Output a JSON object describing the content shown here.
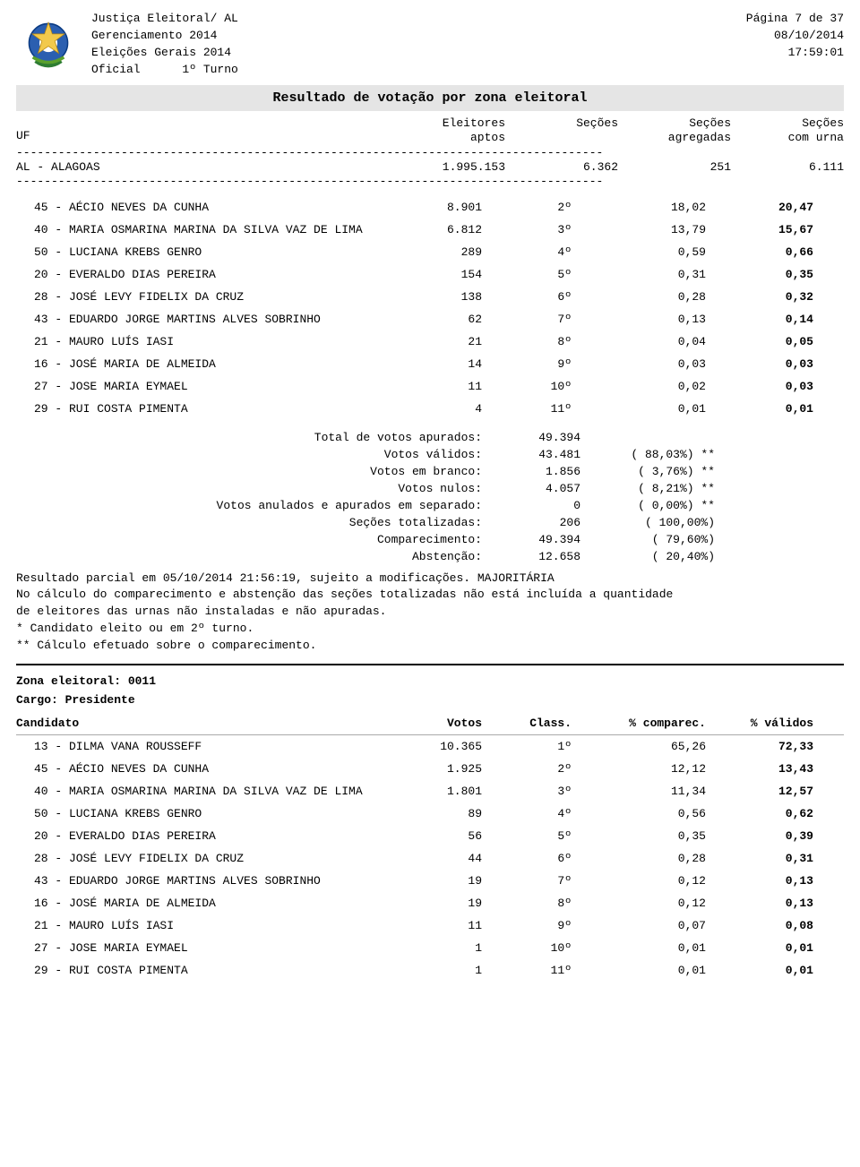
{
  "header": {
    "org": "Justiça Eleitoral/ AL",
    "mgmt": "Gerenciamento 2014",
    "election": "Eleições Gerais 2014",
    "official": "Oficial",
    "turn": "1º Turno",
    "page": "Página 7 de 37",
    "date": "08/10/2014",
    "time": "17:59:01"
  },
  "title": "Resultado de votação por zona eleitoral",
  "columns": {
    "uf": "UF",
    "c1a": "Eleitores",
    "c1b": "aptos",
    "c2a": "Seções",
    "c2b": "",
    "c3a": "Seções",
    "c3b": "agregadas",
    "c4a": "Seções",
    "c4b": "com urna"
  },
  "state": {
    "name": "AL - ALAGOAS",
    "eleitores": "1.995.153",
    "secoes": "6.362",
    "agregadas": "251",
    "com_urna": "6.111"
  },
  "dashes": "------------------------------------------------------------------------------------",
  "candidates1": [
    {
      "name": "45 - AÉCIO NEVES DA CUNHA",
      "votes": "8.901",
      "class": "2º",
      "pct1": "18,02",
      "pct2": "20,47"
    },
    {
      "name": "40 - MARIA OSMARINA MARINA DA SILVA VAZ DE LIMA",
      "votes": "6.812",
      "class": "3º",
      "pct1": "13,79",
      "pct2": "15,67"
    },
    {
      "name": "50 - LUCIANA KREBS GENRO",
      "votes": "289",
      "class": "4º",
      "pct1": "0,59",
      "pct2": "0,66"
    },
    {
      "name": "20 - EVERALDO DIAS PEREIRA",
      "votes": "154",
      "class": "5º",
      "pct1": "0,31",
      "pct2": "0,35"
    },
    {
      "name": "28 - JOSÉ LEVY FIDELIX DA CRUZ",
      "votes": "138",
      "class": "6º",
      "pct1": "0,28",
      "pct2": "0,32"
    },
    {
      "name": "43 - EDUARDO JORGE MARTINS ALVES SOBRINHO",
      "votes": "62",
      "class": "7º",
      "pct1": "0,13",
      "pct2": "0,14"
    },
    {
      "name": "21 - MAURO LUÍS IASI",
      "votes": "21",
      "class": "8º",
      "pct1": "0,04",
      "pct2": "0,05"
    },
    {
      "name": "16 - JOSÉ MARIA DE ALMEIDA",
      "votes": "14",
      "class": "9º",
      "pct1": "0,03",
      "pct2": "0,03"
    },
    {
      "name": "27 - JOSE MARIA EYMAEL",
      "votes": "11",
      "class": "10º",
      "pct1": "0,02",
      "pct2": "0,03"
    },
    {
      "name": "29 - RUI COSTA PIMENTA",
      "votes": "4",
      "class": "11º",
      "pct1": "0,01",
      "pct2": "0,01"
    }
  ],
  "summary": [
    {
      "label": "Total de votos apurados:",
      "val": "49.394",
      "pct": ""
    },
    {
      "label": "Votos válidos:",
      "val": "43.481",
      "pct": "(  88,03%) **"
    },
    {
      "label": "Votos em branco:",
      "val": "1.856",
      "pct": "(   3,76%) **"
    },
    {
      "label": "Votos nulos:",
      "val": "4.057",
      "pct": "(   8,21%) **"
    },
    {
      "label": "Votos anulados e apurados em separado:",
      "val": "0",
      "pct": "(   0,00%) **"
    },
    {
      "label": "Seções totalizadas:",
      "val": "206",
      "pct": "( 100,00%)"
    },
    {
      "label": "Comparecimento:",
      "val": "49.394",
      "pct": "(  79,60%)"
    },
    {
      "label": "Abstenção:",
      "val": "12.658",
      "pct": "(  20,40%)"
    }
  ],
  "notes": {
    "l1": "Resultado parcial em 05/10/2014 21:56:19, sujeito a modificações. MAJORITÁRIA",
    "l2": "No cálculo do comparecimento e abstenção das seções totalizadas não está incluída a quantidade",
    "l3": "de eleitores das urnas não instaladas e não apuradas.",
    "l4": "* Candidato eleito ou em 2º turno.",
    "l5": "** Cálculo efetuado sobre o comparecimento."
  },
  "zone2": {
    "title": "Zona eleitoral: 0011",
    "cargo": "Cargo: Presidente",
    "head": {
      "name": "Candidato",
      "votes": "Votos",
      "class": "Class.",
      "pct1": "% comparec.",
      "pct2": "% válidos"
    },
    "rows": [
      {
        "name": "13 - DILMA VANA ROUSSEFF",
        "votes": "10.365",
        "class": "1º",
        "pct1": "65,26",
        "pct2": "72,33"
      },
      {
        "name": "45 - AÉCIO NEVES DA CUNHA",
        "votes": "1.925",
        "class": "2º",
        "pct1": "12,12",
        "pct2": "13,43"
      },
      {
        "name": "40 - MARIA OSMARINA MARINA DA SILVA VAZ DE LIMA",
        "votes": "1.801",
        "class": "3º",
        "pct1": "11,34",
        "pct2": "12,57"
      },
      {
        "name": "50 - LUCIANA KREBS GENRO",
        "votes": "89",
        "class": "4º",
        "pct1": "0,56",
        "pct2": "0,62"
      },
      {
        "name": "20 - EVERALDO DIAS PEREIRA",
        "votes": "56",
        "class": "5º",
        "pct1": "0,35",
        "pct2": "0,39"
      },
      {
        "name": "28 - JOSÉ LEVY FIDELIX DA CRUZ",
        "votes": "44",
        "class": "6º",
        "pct1": "0,28",
        "pct2": "0,31"
      },
      {
        "name": "43 - EDUARDO JORGE MARTINS ALVES SOBRINHO",
        "votes": "19",
        "class": "7º",
        "pct1": "0,12",
        "pct2": "0,13"
      },
      {
        "name": "16 - JOSÉ MARIA DE ALMEIDA",
        "votes": "19",
        "class": "8º",
        "pct1": "0,12",
        "pct2": "0,13"
      },
      {
        "name": "21 - MAURO LUÍS IASI",
        "votes": "11",
        "class": "9º",
        "pct1": "0,07",
        "pct2": "0,08"
      },
      {
        "name": "27 - JOSE MARIA EYMAEL",
        "votes": "1",
        "class": "10º",
        "pct1": "0,01",
        "pct2": "0,01"
      },
      {
        "name": "29 - RUI COSTA PIMENTA",
        "votes": "1",
        "class": "11º",
        "pct1": "0,01",
        "pct2": "0,01"
      }
    ]
  }
}
